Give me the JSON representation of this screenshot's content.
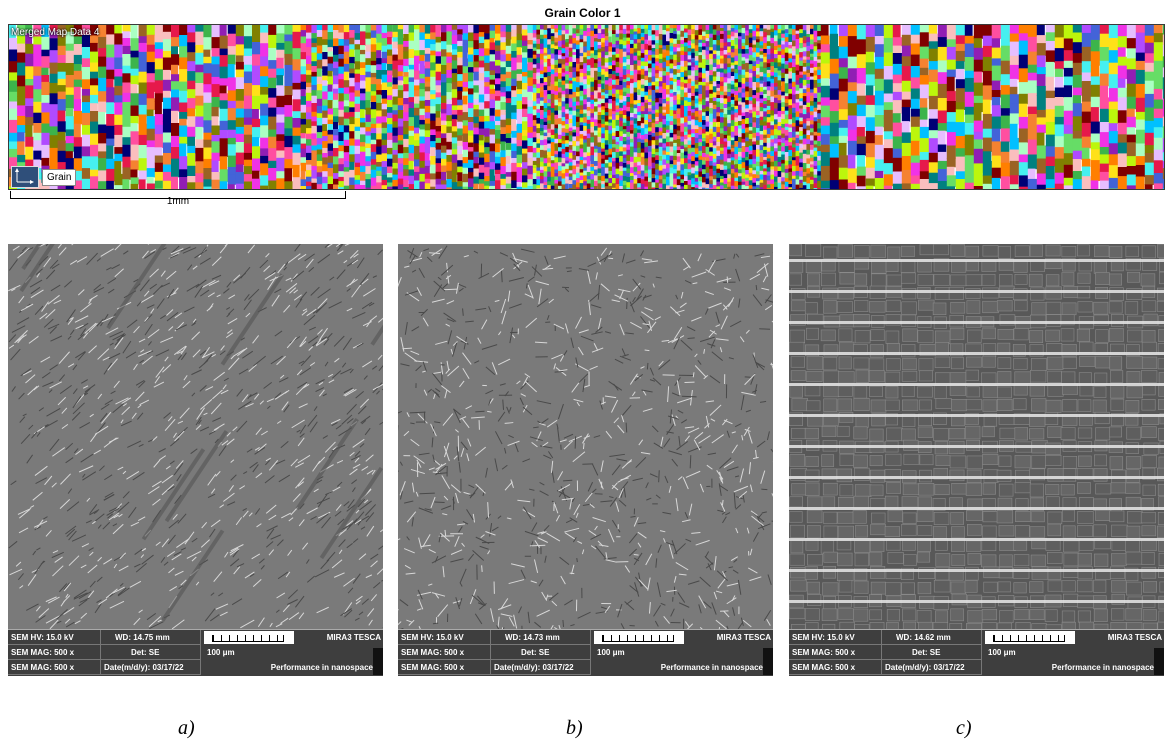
{
  "ebsd": {
    "title": "Grain Color 1",
    "map_label": "Merged Map Data 4",
    "legend_chip": "Grain",
    "scalebar_label": "1mm"
  },
  "panels": [
    {
      "caption": "a)",
      "info": {
        "hv": "SEM HV: 15.0 kV",
        "wd": "WD: 14.75 mm",
        "mag1": "SEM MAG: 500 x",
        "det": "Det: SE",
        "mag2": "SEM MAG: 500 x",
        "date": "Date(m/d/y): 03/17/22",
        "scale": "100 μm",
        "brand": "MIRA3 TESCA",
        "tagline": "Performance in nanospace"
      }
    },
    {
      "caption": "b)",
      "info": {
        "hv": "SEM HV: 15.0 kV",
        "wd": "WD: 14.73 mm",
        "mag1": "SEM MAG: 500 x",
        "det": "Det: SE",
        "mag2": "SEM MAG: 500 x",
        "date": "Date(m/d/y): 03/17/22",
        "scale": "100 μm",
        "brand": "MIRA3 TESCA",
        "tagline": "Performance in nanospace"
      }
    },
    {
      "caption": "c)",
      "info": {
        "hv": "SEM HV: 15.0 kV",
        "wd": "WD: 14.62 mm",
        "mag1": "SEM MAG: 500 x",
        "det": "Det: SE",
        "mag2": "SEM MAG: 500 x",
        "date": "Date(m/d/y): 03/17/22",
        "scale": "100 μm",
        "brand": "MIRA3 TESCA",
        "tagline": "Performance in nanospace"
      }
    }
  ]
}
